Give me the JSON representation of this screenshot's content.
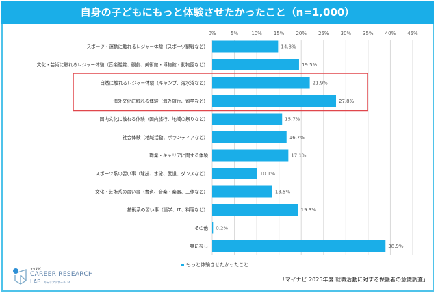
{
  "title": "自身の子どもにもっと体験させたかったこと（n=1,000）",
  "legend_label": "もっと体験させたかったこと",
  "source": "「マイナビ 2025年度 就職活動に対する保護者の意識調査」",
  "logo": {
    "brand": "マイナビ",
    "line1": "CAREER RESEARCH",
    "line2": "LAB",
    "line2_sub": "キャリアリサーチLab"
  },
  "colors": {
    "bar": "#1aaee8",
    "title_bg": "#1aaee8",
    "highlight_box": "#e0474c"
  },
  "chart_data": {
    "type": "bar",
    "orientation": "horizontal",
    "title": "自身の子どもにもっと体験させたかったこと（n=1,000）",
    "categories": [
      "スポーツ・運動に触れるレジャー体験（スポーツ観戦など）",
      "文化・芸術に触れるレジャー体験（音楽鑑賞、観劇、美術館・博物館・動物園など）",
      "自然に触れるレジャー体験（キャンプ、海水浴など）",
      "海外文化に触れる体験（海外旅行、留学など）",
      "国内文化に触れる体験（国内旅行、地域の祭りなど）",
      "社会体験（地域活動、ボランティアなど）",
      "職業・キャリアに関する体験",
      "スポーツ系の習い事（球技、水泳、武道、ダンスなど）",
      "文化・芸術系の習い事（書道、音楽・楽器、工作など）",
      "技術系の習い事（語学、IT、料理など）",
      "その他",
      "特になし"
    ],
    "series": [
      {
        "name": "もっと体験させたかったこと",
        "values": [
          14.8,
          19.5,
          21.9,
          27.8,
          15.7,
          16.7,
          17.1,
          10.1,
          13.5,
          19.3,
          0.2,
          38.9
        ]
      }
    ],
    "data_labels": [
      "14.8%",
      "19.5%",
      "21.9%",
      "27.8%",
      "15.7%",
      "16.7%",
      "17.1%",
      "10.1%",
      "13.5%",
      "19.3%",
      "0.2%",
      "38.9%"
    ],
    "xlim": [
      0,
      45
    ],
    "x_ticks": [
      "0%",
      "5%",
      "10%",
      "15%",
      "20%",
      "25%",
      "30%",
      "35%",
      "40%",
      "45%"
    ],
    "x_axis_position": "top",
    "grid": true,
    "legend_position": "bottom",
    "highlighted_categories": [
      2,
      3
    ]
  }
}
